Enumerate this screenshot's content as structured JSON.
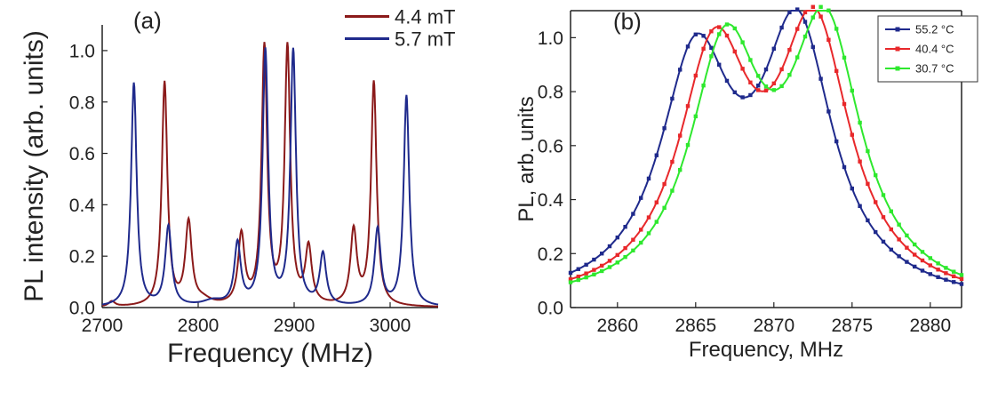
{
  "chart_data": [
    {
      "type": "line",
      "panel_label": "(a)",
      "xlabel": "Frequency (MHz)",
      "ylabel": "PL intensity (arb. units)",
      "xlim": [
        2700,
        3050
      ],
      "ylim": [
        0,
        1.1
      ],
      "xticks": [
        2700,
        2800,
        2900,
        3000
      ],
      "yticks": [
        0.0,
        0.2,
        0.4,
        0.6,
        0.8,
        1.0
      ],
      "xtick_labels": [
        "2700",
        "2800",
        "2900",
        "3000"
      ],
      "ytick_labels": [
        "0.0",
        "0.2",
        "0.4",
        "0.6",
        "0.8",
        "1.0"
      ],
      "legend_position": "top-right",
      "series": [
        {
          "name": "4.4 mT",
          "color": "#8b1a1a",
          "peaks": [
            {
              "x": 2710,
              "y": 0.02,
              "w": 4
            },
            {
              "x": 2765,
              "y": 0.87,
              "w": 3.5
            },
            {
              "x": 2790,
              "y": 0.32,
              "w": 4
            },
            {
              "x": 2805,
              "y": 0.02,
              "w": 10
            },
            {
              "x": 2845,
              "y": 0.27,
              "w": 4
            },
            {
              "x": 2869,
              "y": 1.0,
              "w": 3.5
            },
            {
              "x": 2893,
              "y": 1.0,
              "w": 3.5
            },
            {
              "x": 2915,
              "y": 0.22,
              "w": 4
            },
            {
              "x": 2962,
              "y": 0.29,
              "w": 4
            },
            {
              "x": 2983,
              "y": 0.87,
              "w": 3.5
            }
          ]
        },
        {
          "name": "5.7 mT",
          "color": "#1f2a8c",
          "peaks": [
            {
              "x": 2733,
              "y": 0.87,
              "w": 3.5
            },
            {
              "x": 2769,
              "y": 0.31,
              "w": 4
            },
            {
              "x": 2815,
              "y": 0.02,
              "w": 12
            },
            {
              "x": 2841,
              "y": 0.24,
              "w": 4
            },
            {
              "x": 2870,
              "y": 0.99,
              "w": 3.5
            },
            {
              "x": 2899,
              "y": 0.99,
              "w": 3.5
            },
            {
              "x": 2930,
              "y": 0.2,
              "w": 4
            },
            {
              "x": 2987,
              "y": 0.3,
              "w": 4
            },
            {
              "x": 3017,
              "y": 0.82,
              "w": 3.5
            }
          ]
        }
      ]
    },
    {
      "type": "line",
      "panel_label": "(b)",
      "xlabel": "Frequency, MHz",
      "ylabel": "PL, arb. units",
      "xlim": [
        2857,
        2882
      ],
      "ylim": [
        0,
        1.1
      ],
      "xticks": [
        2860,
        2865,
        2870,
        2875,
        2880
      ],
      "yticks": [
        0.0,
        0.2,
        0.4,
        0.6,
        0.8,
        1.0
      ],
      "xtick_labels": [
        "2860",
        "2865",
        "2870",
        "2875",
        "2880"
      ],
      "ytick_labels": [
        "0.0",
        "0.2",
        "0.4",
        "0.6",
        "0.8",
        "1.0"
      ],
      "legend_position": "top-right",
      "series": [
        {
          "name": "55.2 °C",
          "color": "#1f2a8c",
          "peaks": [
            {
              "x": 2865.0,
              "y": 0.86,
              "w": 2.8
            },
            {
              "x": 2871.5,
              "y": 0.97,
              "w": 2.8
            }
          ]
        },
        {
          "name": "40.4 °C",
          "color": "#e8282b",
          "peaks": [
            {
              "x": 2866.2,
              "y": 0.88,
              "w": 2.8
            },
            {
              "x": 2872.6,
              "y": 0.97,
              "w": 2.8
            }
          ]
        },
        {
          "name": "30.7 °C",
          "color": "#2ee82e",
          "peaks": [
            {
              "x": 2866.9,
              "y": 0.89,
              "w": 2.8
            },
            {
              "x": 2873.3,
              "y": 0.97,
              "w": 2.8
            }
          ]
        }
      ]
    }
  ]
}
